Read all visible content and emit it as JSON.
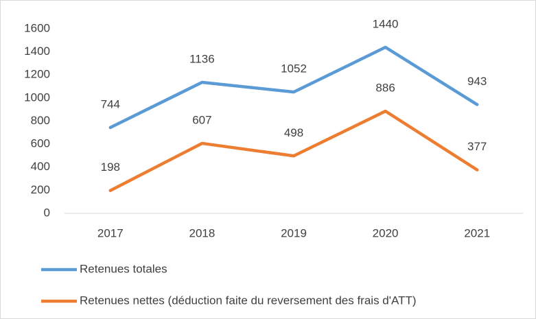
{
  "chart_data": {
    "type": "line",
    "categories": [
      "2017",
      "2018",
      "2019",
      "2020",
      "2021"
    ],
    "series": [
      {
        "name": "Retenues totales",
        "color": "#5b9bd5",
        "values": [
          744,
          1136,
          1052,
          1440,
          943
        ]
      },
      {
        "name": "Retenues nettes (déduction faite du reversement des frais d'ATT)",
        "color": "#ed7d31",
        "values": [
          198,
          607,
          498,
          886,
          377
        ]
      }
    ],
    "ylim": [
      0,
      1600
    ],
    "yticks": [
      0,
      200,
      400,
      600,
      800,
      1000,
      1200,
      1400,
      1600
    ],
    "grid": false,
    "legend": "bottom",
    "data_labels": true
  }
}
